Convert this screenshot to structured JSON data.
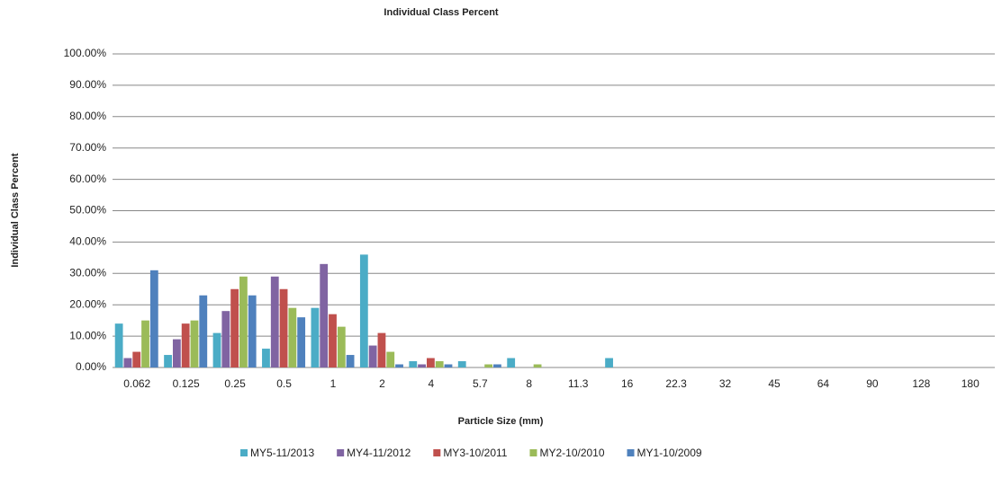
{
  "chart_data": {
    "type": "bar",
    "title": "Individual Class Percent",
    "x_label": "Particle Size (mm)",
    "y_label": "Individual Class Percent",
    "categories": [
      "0.062",
      "0.125",
      "0.25",
      "0.5",
      "1",
      "2",
      "4",
      "5.7",
      "8",
      "11.3",
      "16",
      "22.3",
      "32",
      "45",
      "64",
      "90",
      "128",
      "180"
    ],
    "series": [
      {
        "name": "MY5-11/2013",
        "color": "#4bacc6",
        "values": [
          14,
          4,
          11,
          6,
          19,
          36,
          2,
          2,
          3,
          0,
          3,
          0,
          0,
          0,
          0,
          0,
          0,
          0
        ]
      },
      {
        "name": "MY4-11/2012",
        "color": "#8064a2",
        "values": [
          3,
          9,
          18,
          29,
          33,
          7,
          1,
          0,
          0,
          0,
          0,
          0,
          0,
          0,
          0,
          0,
          0,
          0
        ]
      },
      {
        "name": "MY3-10/2011",
        "color": "#c0504d",
        "values": [
          5,
          14,
          25,
          25,
          17,
          11,
          3,
          0,
          0,
          0,
          0,
          0,
          0,
          0,
          0,
          0,
          0,
          0
        ]
      },
      {
        "name": "MY2-10/2010",
        "color": "#9bbb59",
        "values": [
          15,
          15,
          29,
          19,
          13,
          5,
          2,
          1,
          1,
          0,
          0,
          0,
          0,
          0,
          0,
          0,
          0,
          0
        ]
      },
      {
        "name": "MY1-10/2009",
        "color": "#4f81bd",
        "values": [
          31,
          23,
          23,
          16,
          4,
          1,
          1,
          1,
          0,
          0,
          0,
          0,
          0,
          0,
          0,
          0,
          0,
          0
        ]
      }
    ],
    "ylim": [
      0,
      100
    ],
    "yticks": [
      {
        "value": 0,
        "label": "0.00%"
      },
      {
        "value": 10,
        "label": "10.00%"
      },
      {
        "value": 20,
        "label": "20.00%"
      },
      {
        "value": 30,
        "label": "30.00%"
      },
      {
        "value": 40,
        "label": "40.00%"
      },
      {
        "value": 50,
        "label": "50.00%"
      },
      {
        "value": 60,
        "label": "60.00%"
      },
      {
        "value": 70,
        "label": "70.00%"
      },
      {
        "value": 80,
        "label": "80.00%"
      },
      {
        "value": 90,
        "label": "90.00%"
      },
      {
        "value": 100,
        "label": "100.00%"
      }
    ],
    "grid": true,
    "legend": "bottom"
  }
}
